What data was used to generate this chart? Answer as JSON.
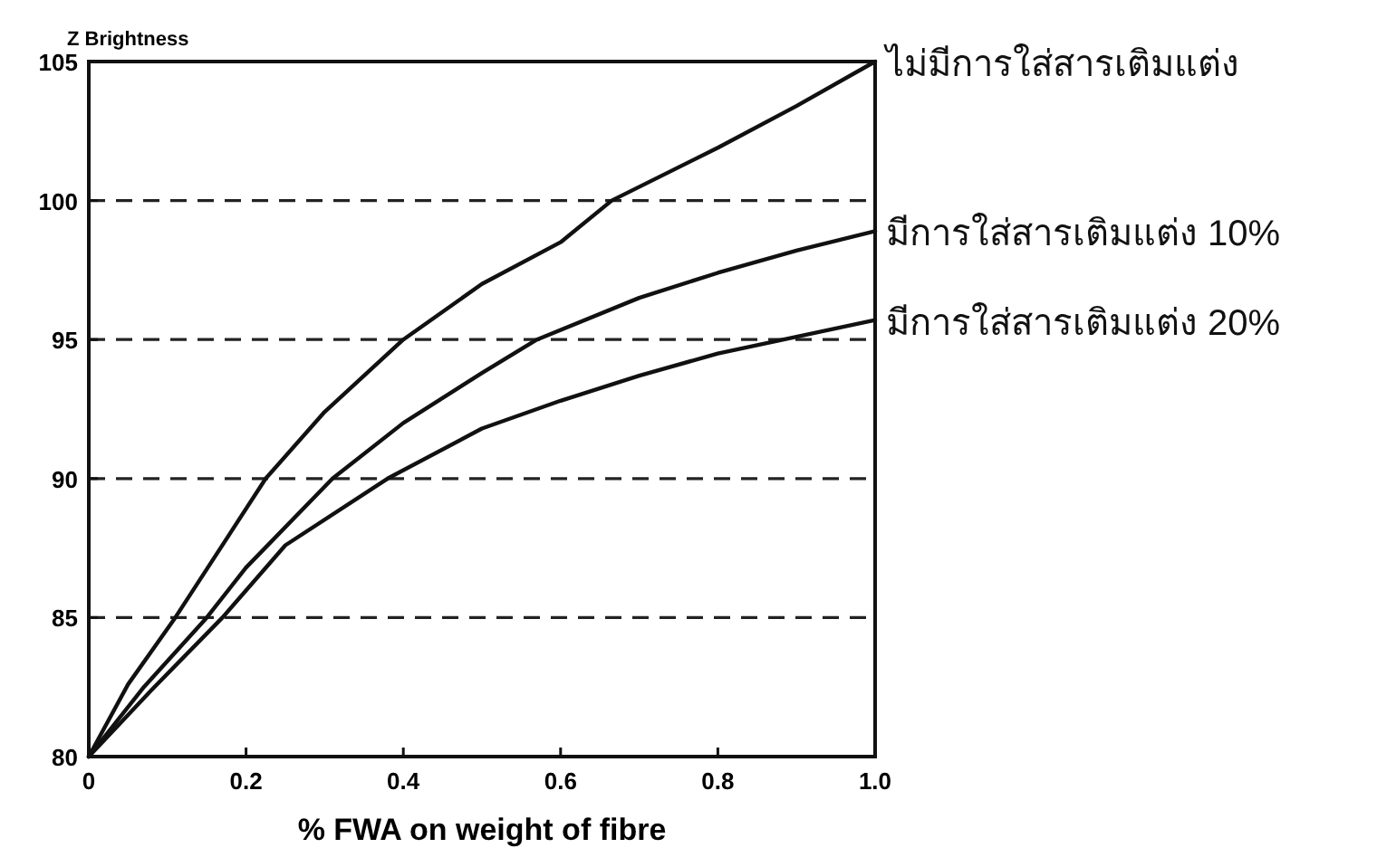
{
  "chart_data": {
    "type": "line",
    "xlabel": "% FWA on weight of fibre",
    "ylabel": "Z Brightness",
    "xlim": [
      0,
      1
    ],
    "ylim": [
      80,
      105
    ],
    "xticks": [
      0,
      0.2,
      0.4,
      0.6,
      0.8,
      {
        "value": 1,
        "label": "1.0"
      }
    ],
    "yticks": [
      80,
      85,
      90,
      95,
      100,
      105
    ],
    "grid": "y",
    "legend": false,
    "marker": "none",
    "line_style": "solid",
    "series": [
      {
        "name": "ไม่มีการใส่สารเติมแต่ง",
        "color": "#111111",
        "x": [
          0,
          0.05,
          0.11,
          0.225,
          0.3,
          0.4,
          0.5,
          0.6,
          0.665,
          0.8,
          0.9,
          1
        ],
        "values": [
          80,
          82.6,
          85,
          90,
          92.4,
          95,
          97,
          98.5,
          100,
          101.9,
          103.4,
          105
        ]
      },
      {
        "name": "มีการใส่สารเติมแต่ง  10%",
        "color": "#111111",
        "x": [
          0,
          0.07,
          0.15,
          0.2,
          0.31,
          0.4,
          0.5,
          0.57,
          0.7,
          0.8,
          0.9,
          1
        ],
        "values": [
          80,
          82.5,
          85,
          86.8,
          90,
          92,
          93.8,
          95,
          96.5,
          97.4,
          98.2,
          98.9
        ]
      },
      {
        "name": "มีการใส่สารเติมแต่ง  20%",
        "color": "#111111",
        "x": [
          0,
          0.08,
          0.17,
          0.25,
          0.38,
          0.5,
          0.6,
          0.7,
          0.8,
          0.9,
          1
        ],
        "values": [
          80,
          82.4,
          85,
          87.6,
          90,
          91.8,
          92.8,
          93.7,
          94.5,
          95.1,
          95.7
        ]
      }
    ]
  }
}
